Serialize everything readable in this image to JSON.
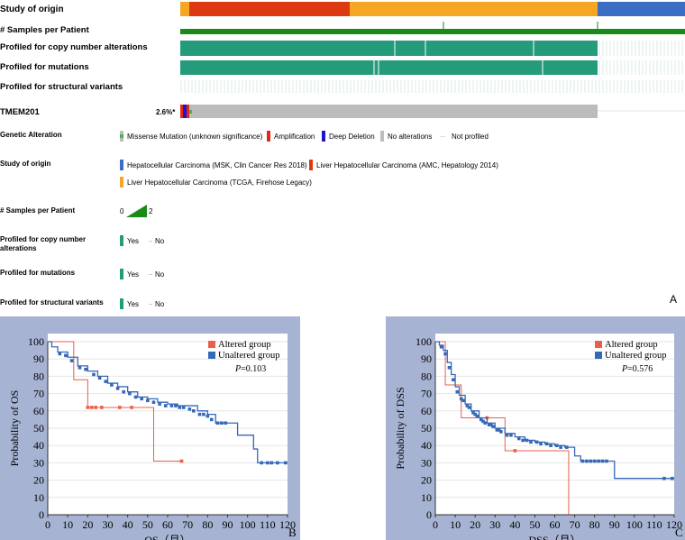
{
  "oncoprint": {
    "tracks": {
      "study_of_origin": "Study of origin",
      "samples_per_patient": "# Samples per Patient",
      "profiled_cna": "Profiled for copy number alterations",
      "profiled_mutations": "Profiled for mutations",
      "profiled_sv": "Profiled for structural variants"
    },
    "gene": "TMEM201",
    "gene_pct": "2.6%*",
    "colors": {
      "hcc_msk": "#3a6dc4",
      "lhc_amc": "#dc3912",
      "lihc_tcga": "#f5a623",
      "profiled": "#249b7a",
      "samples": "#1b8a1b",
      "no_alt": "#bcbcbc",
      "missense": "#4caf50",
      "amplification": "#e4261a",
      "deep_deletion": "#1c16c8"
    },
    "legend": {
      "genetic_alteration": {
        "title": "Genetic Alteration",
        "items": [
          "Missense Mutation (unknown significance)",
          "Amplification",
          "Deep Deletion",
          "No alterations",
          "Not profiled"
        ]
      },
      "study_of_origin": {
        "title": "Study of origin",
        "items": [
          "Hepatocellular Carcinoma (MSK, Clin Cancer Res 2018)",
          "Liver Hepatocellular Carcinoma (AMC, Hepatology 2014)",
          "Liver Hepatocellular Carcinoma (TCGA, Firehose Legacy)"
        ]
      },
      "samples_per_patient": {
        "title": "# Samples per Patient",
        "min": "0",
        "max": "2"
      },
      "profiled_cna": {
        "title_line1": "Profiled for copy number",
        "title_line2": "alterations",
        "yes": "Yes",
        "no": "No"
      },
      "profiled_mutations": {
        "title": "Profiled for mutations",
        "yes": "Yes",
        "no": "No"
      },
      "profiled_sv": {
        "title": "Profiled for structural variants",
        "yes": "Yes",
        "no": "No"
      }
    },
    "panel_label": "A"
  },
  "chart_data": [
    {
      "type": "line",
      "panel": "B",
      "xlabel": "OS（月）",
      "ylabel": "Probability of OS",
      "xlim": [
        0,
        120
      ],
      "ylim": [
        0,
        100
      ],
      "xticks": [
        0,
        10,
        20,
        30,
        40,
        50,
        60,
        70,
        80,
        90,
        100,
        110,
        120
      ],
      "yticks": [
        0,
        10,
        20,
        30,
        40,
        50,
        60,
        70,
        80,
        90,
        100
      ],
      "pvalue_label": "P",
      "pvalue": "=0.103",
      "legend_position": "top-right",
      "series": [
        {
          "name": "Altered group",
          "color": "#e8604a",
          "x": [
            0,
            13,
            13,
            20,
            20,
            53,
            53,
            67
          ],
          "y": [
            100,
            100,
            78,
            78,
            62,
            62,
            31,
            31
          ],
          "censored_x": [
            20,
            22,
            24,
            27,
            36,
            42,
            67
          ],
          "censored_y": [
            62,
            62,
            62,
            62,
            62,
            62,
            31
          ]
        },
        {
          "name": "Unaltered group",
          "color": "#3668b8",
          "x": [
            0,
            2,
            5,
            10,
            15,
            20,
            25,
            30,
            35,
            40,
            45,
            50,
            55,
            60,
            65,
            70,
            75,
            80,
            84,
            90,
            95,
            98,
            103,
            105,
            110,
            115,
            120
          ],
          "y": [
            100,
            97,
            94,
            91,
            86,
            83,
            80,
            76,
            74,
            71,
            68,
            67,
            65,
            64,
            63,
            63,
            60,
            58,
            53,
            53,
            46,
            46,
            38,
            30,
            30,
            30,
            30
          ],
          "censored_x": [
            6,
            9,
            12,
            16,
            19,
            23,
            26,
            29,
            32,
            35,
            38,
            41,
            44,
            47,
            50,
            53,
            56,
            59,
            62,
            64,
            66,
            68,
            71,
            73,
            76,
            78,
            80,
            82,
            85,
            87,
            89,
            107,
            110,
            112,
            115,
            119
          ],
          "censored_y": [
            93,
            92,
            89,
            85,
            84,
            81,
            79,
            77,
            75,
            73,
            71,
            70,
            68,
            67,
            66,
            65,
            64,
            63,
            63,
            63,
            62,
            62,
            61,
            60,
            58,
            58,
            57,
            55,
            53,
            53,
            53,
            30,
            30,
            30,
            30,
            30
          ]
        }
      ]
    },
    {
      "type": "line",
      "panel": "C",
      "xlabel": "DSS（月）",
      "ylabel": "Probability of DSS",
      "xlim": [
        0,
        120
      ],
      "ylim": [
        0,
        100
      ],
      "xticks": [
        0,
        10,
        20,
        30,
        40,
        50,
        60,
        70,
        80,
        90,
        100,
        110,
        120
      ],
      "yticks": [
        0,
        10,
        20,
        30,
        40,
        50,
        60,
        70,
        80,
        90,
        100
      ],
      "pvalue_label": "P",
      "pvalue": "=0.576",
      "legend_position": "top-right",
      "series": [
        {
          "name": "Altered group",
          "color": "#e8604a",
          "x": [
            0,
            5,
            5,
            13,
            13,
            35,
            35,
            67,
            67
          ],
          "y": [
            100,
            100,
            75,
            75,
            56,
            56,
            37,
            37,
            0
          ],
          "censored_x": [
            26,
            40
          ],
          "censored_y": [
            56,
            37
          ]
        },
        {
          "name": "Unaltered group",
          "color": "#3668b8",
          "x": [
            0,
            2,
            4,
            6,
            8,
            10,
            12,
            15,
            18,
            22,
            26,
            30,
            35,
            40,
            45,
            50,
            55,
            60,
            65,
            70,
            73,
            80,
            88,
            90,
            100,
            115,
            120
          ],
          "y": [
            100,
            98,
            95,
            88,
            81,
            74,
            69,
            64,
            60,
            56,
            53,
            50,
            47,
            45,
            43,
            42,
            41,
            40,
            39,
            34,
            31,
            31,
            31,
            21,
            21,
            21,
            21
          ],
          "censored_x": [
            3,
            5,
            7,
            9,
            11,
            13,
            14,
            16,
            17,
            19,
            20,
            21,
            23,
            24,
            25,
            27,
            28,
            29,
            31,
            32,
            33,
            36,
            38,
            42,
            44,
            46,
            48,
            51,
            53,
            56,
            58,
            61,
            63,
            66,
            74,
            76,
            78,
            80,
            82,
            84,
            86,
            115,
            119
          ],
          "censored_y": [
            97,
            93,
            85,
            78,
            71,
            67,
            66,
            63,
            62,
            59,
            58,
            57,
            55,
            54,
            53,
            52,
            52,
            51,
            49,
            49,
            48,
            46,
            46,
            44,
            43,
            43,
            42,
            42,
            41,
            41,
            40,
            40,
            39,
            39,
            31,
            31,
            31,
            31,
            31,
            31,
            31,
            21,
            21
          ]
        }
      ]
    }
  ]
}
